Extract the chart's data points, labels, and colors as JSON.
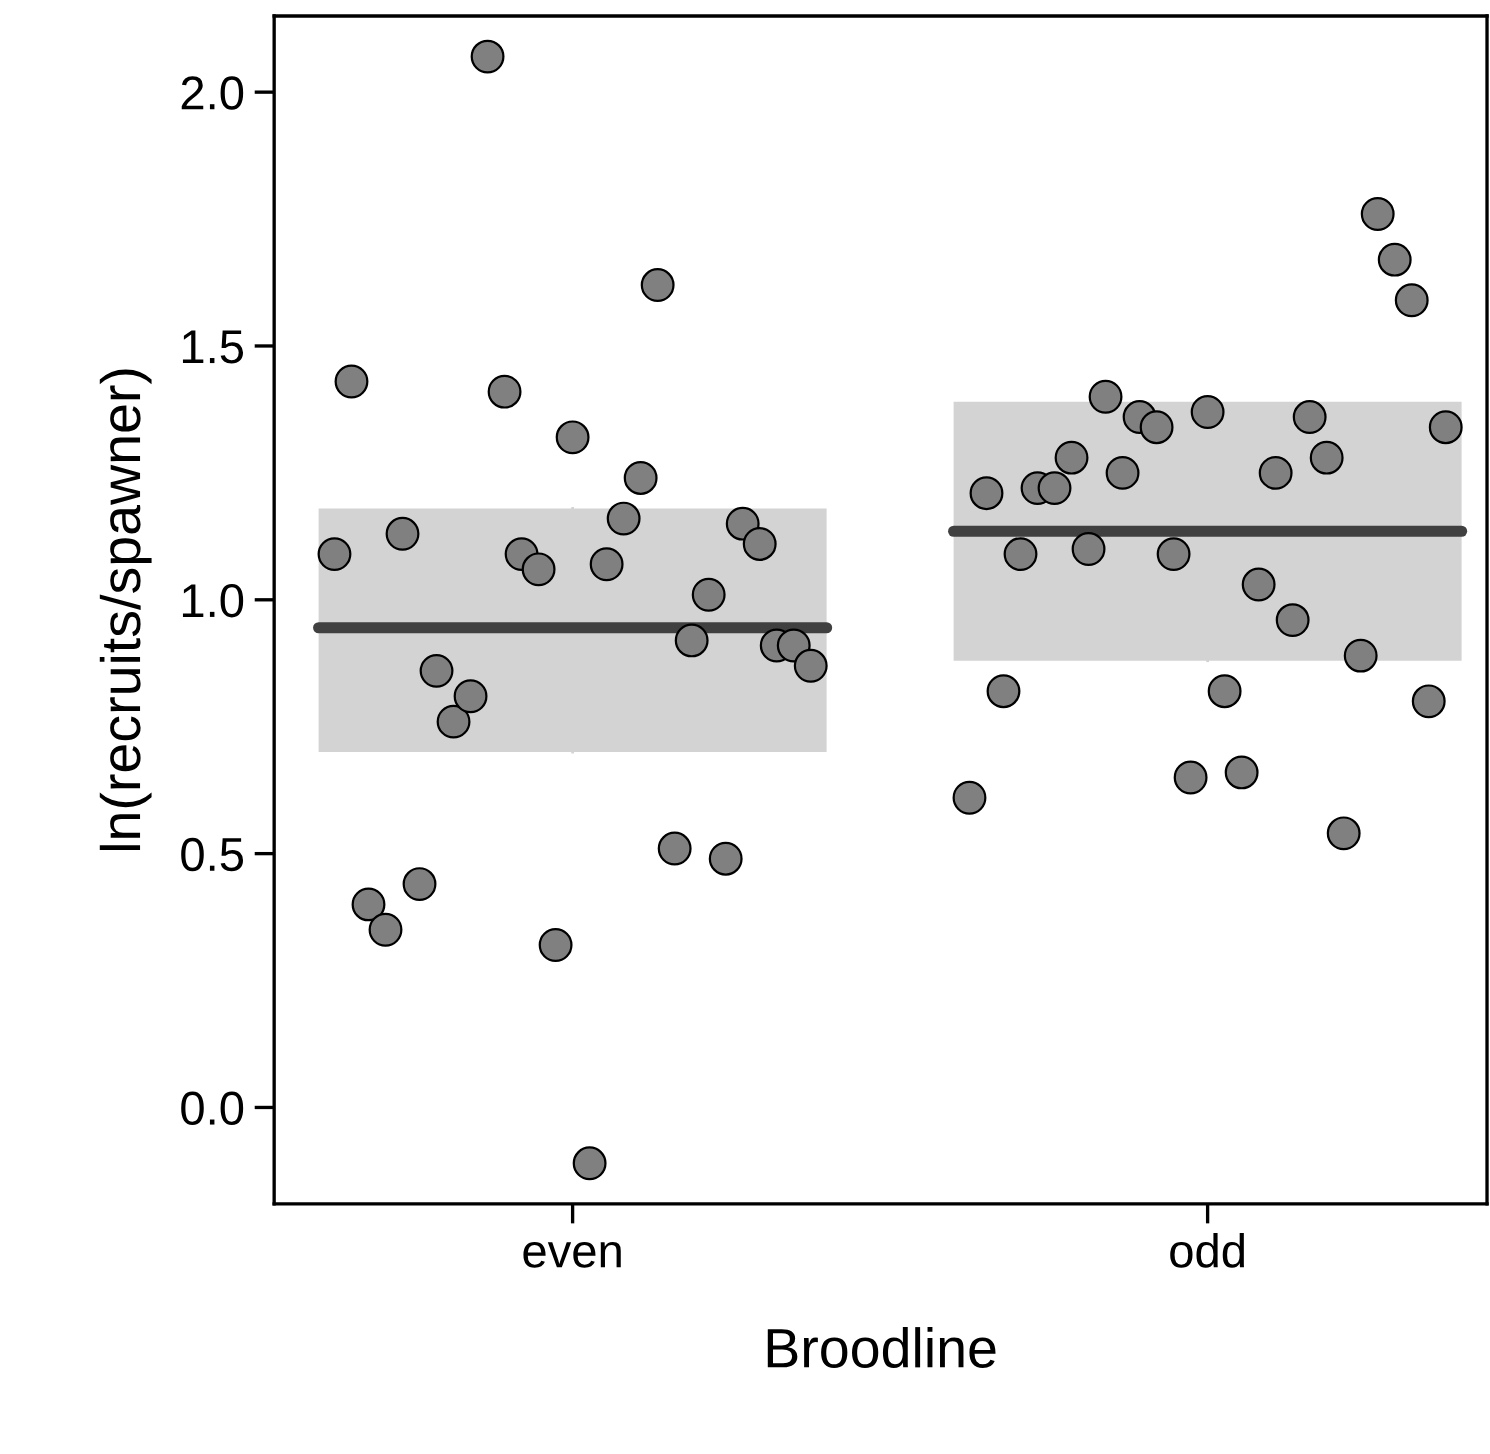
{
  "chart_data": {
    "type": "scatter",
    "xlabel": "Broodline",
    "ylabel": "ln(recruits/spawner)",
    "categories": [
      "even",
      "odd"
    ],
    "ylim": [
      -0.19,
      2.15
    ],
    "yticks": [
      {
        "value": 0,
        "label": "0.0"
      },
      {
        "value": 0.5,
        "label": "0.5"
      },
      {
        "value": 1,
        "label": "1.0"
      },
      {
        "value": 1.5,
        "label": "1.5"
      },
      {
        "value": 2,
        "label": "2.0"
      }
    ],
    "grid": false,
    "legend": false,
    "series": [
      {
        "type": "box",
        "color": "#d3d3d3",
        "boxes": [
          {
            "low": 0.7,
            "q1": 0.7,
            "median": 0.945,
            "q3": 1.18,
            "high": 1.18
          },
          {
            "low": 0.88,
            "q1": 0.88,
            "median": 1.135,
            "q3": 1.39,
            "high": 1.39
          }
        ]
      },
      {
        "color": "#808080",
        "marker": "circle",
        "x": [
          "even",
          "even",
          "even",
          "even",
          "even",
          "even",
          "even",
          "even",
          "even",
          "even",
          "even",
          "even",
          "even",
          "even",
          "even",
          "even",
          "even",
          "even",
          "even",
          "even",
          "even",
          "even",
          "even",
          "even",
          "even",
          "even",
          "even",
          "even",
          "even"
        ],
        "values": [
          1.09,
          1.43,
          0.4,
          0.35,
          1.13,
          0.44,
          0.86,
          0.76,
          0.81,
          2.07,
          1.41,
          1.09,
          1.06,
          0.32,
          1.32,
          -0.11,
          1.07,
          1.16,
          1.24,
          1.62,
          0.51,
          0.92,
          1.01,
          0.49,
          1.15,
          1.11,
          0.91,
          0.91,
          0.87
        ]
      },
      {
        "color": "#808080",
        "marker": "circle",
        "x": [
          "odd",
          "odd",
          "odd",
          "odd",
          "odd",
          "odd",
          "odd",
          "odd",
          "odd",
          "odd",
          "odd",
          "odd",
          "odd",
          "odd",
          "odd",
          "odd",
          "odd",
          "odd",
          "odd",
          "odd",
          "odd",
          "odd",
          "odd",
          "odd",
          "odd",
          "odd",
          "odd",
          "odd",
          "odd"
        ],
        "values": [
          0.61,
          1.21,
          0.82,
          1.09,
          1.22,
          1.22,
          1.28,
          1.1,
          1.4,
          1.25,
          1.36,
          1.34,
          1.09,
          0.65,
          1.37,
          0.82,
          0.66,
          1.03,
          1.25,
          0.96,
          1.36,
          1.28,
          0.54,
          0.89,
          1.76,
          1.67,
          1.59,
          0.8,
          1.34
        ]
      }
    ]
  }
}
